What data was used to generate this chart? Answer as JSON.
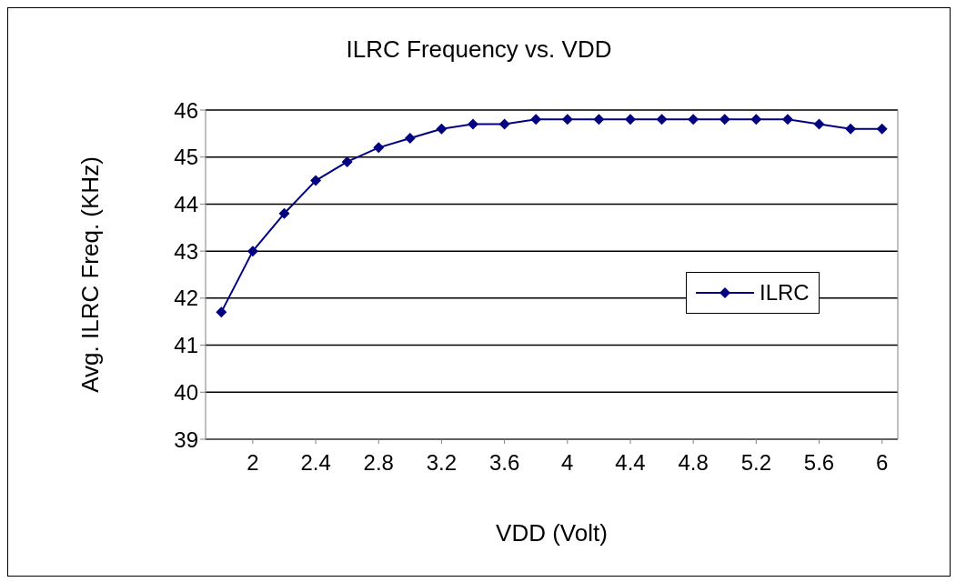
{
  "chart_data": {
    "type": "line",
    "title": "ILRC Frequency vs. VDD",
    "xlabel": "VDD (Volt)",
    "ylabel": "Avg. ILRC Freq. (KHz)",
    "x": [
      1.8,
      2.0,
      2.2,
      2.4,
      2.6,
      2.8,
      3.0,
      3.2,
      3.4,
      3.6,
      3.8,
      4.0,
      4.2,
      4.4,
      4.6,
      4.8,
      5.0,
      5.2,
      5.4,
      5.6,
      5.8,
      6.0
    ],
    "series": [
      {
        "name": "ILRC",
        "color": "#000080",
        "values": [
          41.7,
          43.0,
          43.8,
          44.5,
          44.9,
          45.2,
          45.4,
          45.6,
          45.7,
          45.7,
          45.8,
          45.8,
          45.8,
          45.8,
          45.8,
          45.8,
          45.8,
          45.8,
          45.8,
          45.7,
          45.6,
          45.6
        ]
      }
    ],
    "xlim": [
      1.7,
      6.1
    ],
    "xticks": [
      2,
      2.4,
      2.8,
      3.2,
      3.6,
      4,
      4.4,
      4.8,
      5.2,
      5.6,
      6
    ],
    "ylim": [
      39,
      46
    ],
    "yticks": [
      39,
      40,
      41,
      42,
      43,
      44,
      45,
      46
    ],
    "grid": "y",
    "legend": "right",
    "marker": "diamond",
    "line_style": "solid"
  }
}
